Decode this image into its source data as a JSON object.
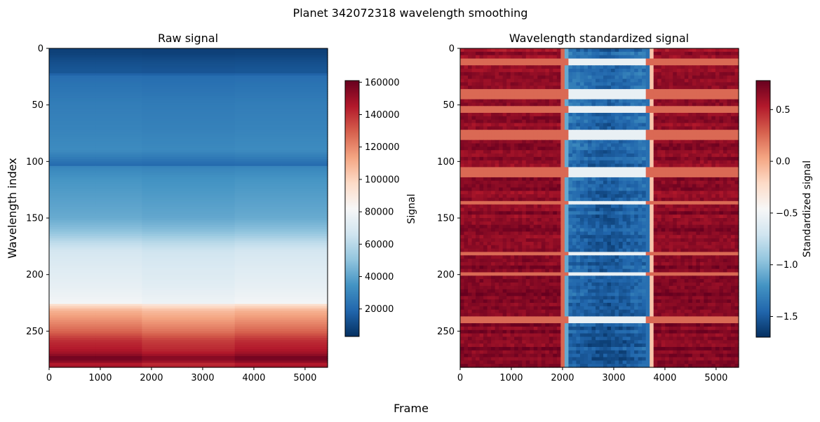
{
  "figure": {
    "suptitle": "Planet 342072318 wavelength smoothing",
    "shared_xlabel": "Frame",
    "shared_ylabel": "Wavelength index"
  },
  "chart_data": [
    {
      "type": "heatmap",
      "title": "Raw signal",
      "xlabel": "Frame",
      "ylabel": "Wavelength index",
      "xlim": [
        0,
        5440
      ],
      "ylim": [
        282,
        0
      ],
      "xticks": [
        0,
        1000,
        2000,
        3000,
        4000,
        5000
      ],
      "yticks": [
        0,
        50,
        100,
        150,
        200,
        250
      ],
      "colormap": "RdBu_r",
      "colorbar": {
        "label": "Signal",
        "range": [
          3000,
          161000
        ],
        "ticks": [
          20000,
          40000,
          60000,
          80000,
          100000,
          120000,
          140000,
          160000
        ]
      },
      "profile": {
        "wavelength_index": [
          0,
          4,
          8,
          12,
          19,
          20,
          21,
          25,
          35,
          50,
          70,
          90,
          103,
          104,
          105,
          115,
          130,
          150,
          162,
          172,
          180,
          195,
          210,
          225,
          226,
          227,
          232,
          240,
          250,
          258,
          262,
          266,
          270,
          273,
          276,
          279,
          282
        ],
        "signal": [
          8000,
          8000,
          10000,
          12000,
          14000,
          9000,
          14000,
          22000,
          24000,
          27000,
          29000,
          32000,
          21000,
          19000,
          30000,
          35000,
          38000,
          42000,
          50000,
          62000,
          68000,
          72000,
          75000,
          80000,
          55000,
          96000,
          110000,
          118000,
          128000,
          140000,
          143000,
          145000,
          150000,
          158000,
          157000,
          145000,
          148000
        ]
      },
      "transit_frames": [
        2050,
        3720
      ]
    },
    {
      "type": "heatmap",
      "title": "Wavelength standardized signal",
      "xlabel": "Frame",
      "ylabel": "",
      "xlim": [
        0,
        5440
      ],
      "ylim": [
        282,
        0
      ],
      "xticks": [
        0,
        1000,
        2000,
        3000,
        4000,
        5000
      ],
      "yticks": [
        0,
        50,
        100,
        150,
        200,
        250
      ],
      "colormap": "RdBu_r",
      "colorbar": {
        "label": "Standardized signal",
        "range": [
          -1.7,
          0.78
        ],
        "ticks": [
          -1.5,
          -1.0,
          -0.5,
          0.0,
          0.5
        ],
        "tick_labels": [
          "−1.5",
          "−1.0",
          "−0.5",
          "0.0",
          "0.5"
        ]
      },
      "out_of_transit_level": 0.62,
      "in_transit_level": -1.45,
      "ingress_frames": [
        1960,
        2120
      ],
      "egress_frames": [
        3650,
        3800
      ],
      "bright_rows": [
        12,
        37,
        42,
        54,
        73,
        78,
        108,
        112,
        137,
        182,
        200,
        240
      ]
    }
  ]
}
